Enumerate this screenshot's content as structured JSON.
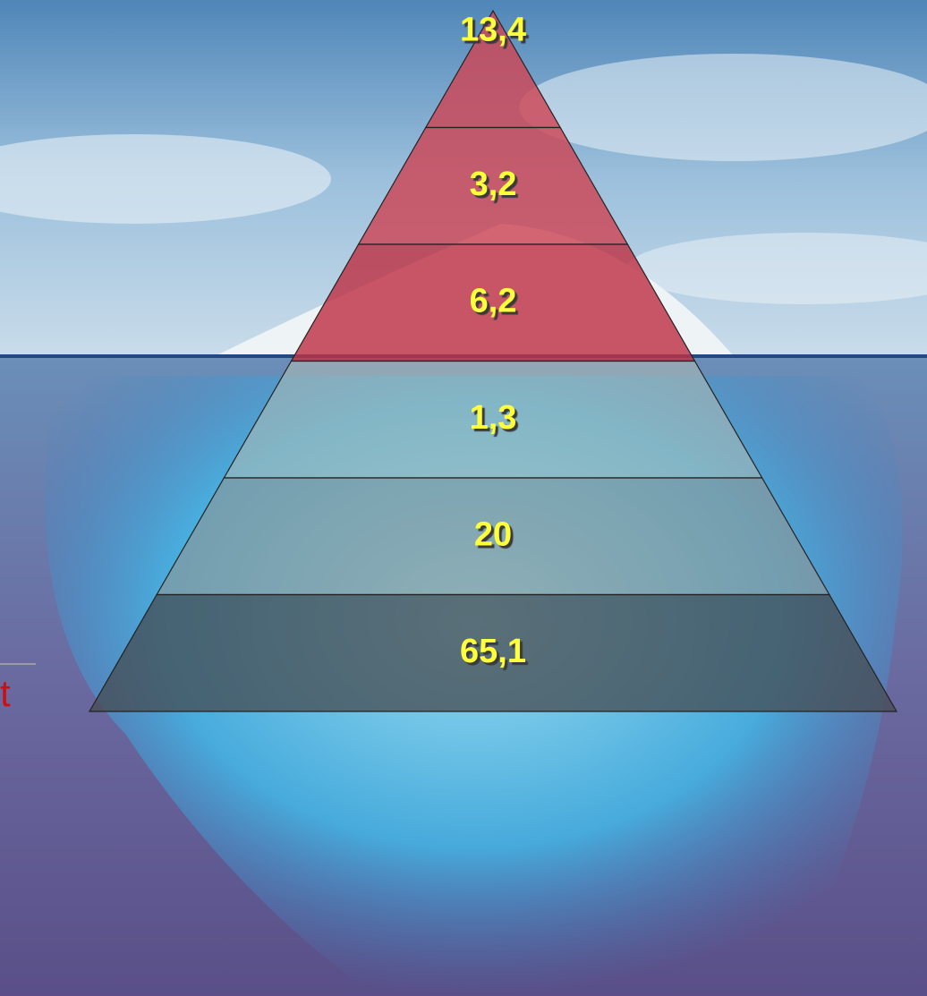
{
  "pyramid": {
    "levels": [
      {
        "label": "13,4"
      },
      {
        "label": "3,2"
      },
      {
        "label": "6,2"
      },
      {
        "label": "1,3"
      },
      {
        "label": "20"
      },
      {
        "label": "65,1"
      }
    ]
  },
  "edge_text": "t"
}
